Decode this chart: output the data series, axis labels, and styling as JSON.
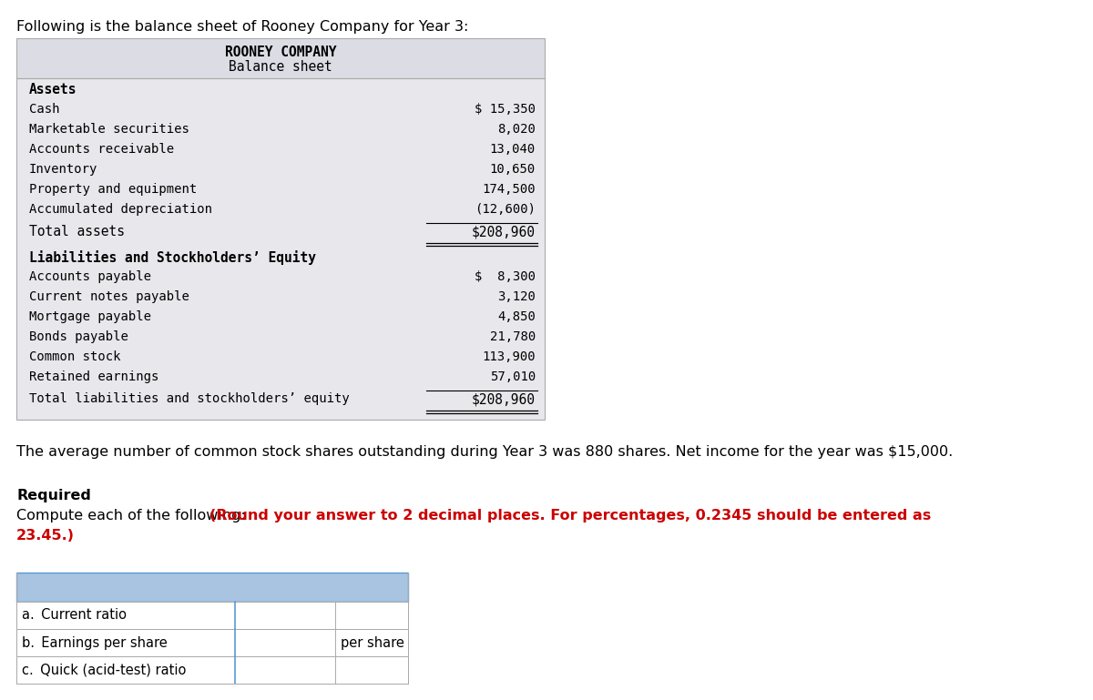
{
  "intro_text": "Following is the balance sheet of Rooney Company for Year 3:",
  "company_name": "ROONEY COMPANY",
  "sheet_title": "Balance sheet",
  "assets_header": "Assets",
  "asset_items": [
    [
      "Cash",
      "$ 15,350"
    ],
    [
      "Marketable securities",
      "8,020"
    ],
    [
      "Accounts receivable",
      "13,040"
    ],
    [
      "Inventory",
      "10,650"
    ],
    [
      "Property and equipment",
      "174,500"
    ],
    [
      "Accumulated depreciation",
      "(12,600)"
    ]
  ],
  "total_assets_label": "Total assets",
  "total_assets_value": "$208,960",
  "liabilities_header": "Liabilities and Stockholders’ Equity",
  "liability_items": [
    [
      "Accounts payable",
      "$  8,300"
    ],
    [
      "Current notes payable",
      "3,120"
    ],
    [
      "Mortgage payable",
      "4,850"
    ],
    [
      "Bonds payable",
      "21,780"
    ],
    [
      "Common stock",
      "113,900"
    ],
    [
      "Retained earnings",
      "57,010"
    ]
  ],
  "total_liabilities_label": "Total liabilities and stockholders’ equity",
  "total_liabilities_value": "$208,960",
  "note_text": "The average number of common stock shares outstanding during Year 3 was 880 shares. Net income for the year was $15,000.",
  "required_label": "Required",
  "required_text_normal": "Compute each of the following: ",
  "required_text_bold_red_line1": "(Round your answer to 2 decimal places. For percentages, 0.2345 should be entered as",
  "required_text_bold_red_line2": "23.45.)",
  "table_rows": [
    {
      "label": "a. Current ratio",
      "value": "",
      "suffix": ""
    },
    {
      "label": "b. Earnings per share",
      "value": "",
      "suffix": "per share"
    },
    {
      "label": "c. Quick (acid-test) ratio",
      "value": "",
      "suffix": ""
    }
  ],
  "bg_color": "#ffffff",
  "table_header_color": "#a8c4e0",
  "table_border_color": "#5b9bd5",
  "balance_sheet_bg": "#e8e8ec",
  "balance_sheet_header_bg": "#dcdce4",
  "balance_sheet_border": "#aaaaaa"
}
